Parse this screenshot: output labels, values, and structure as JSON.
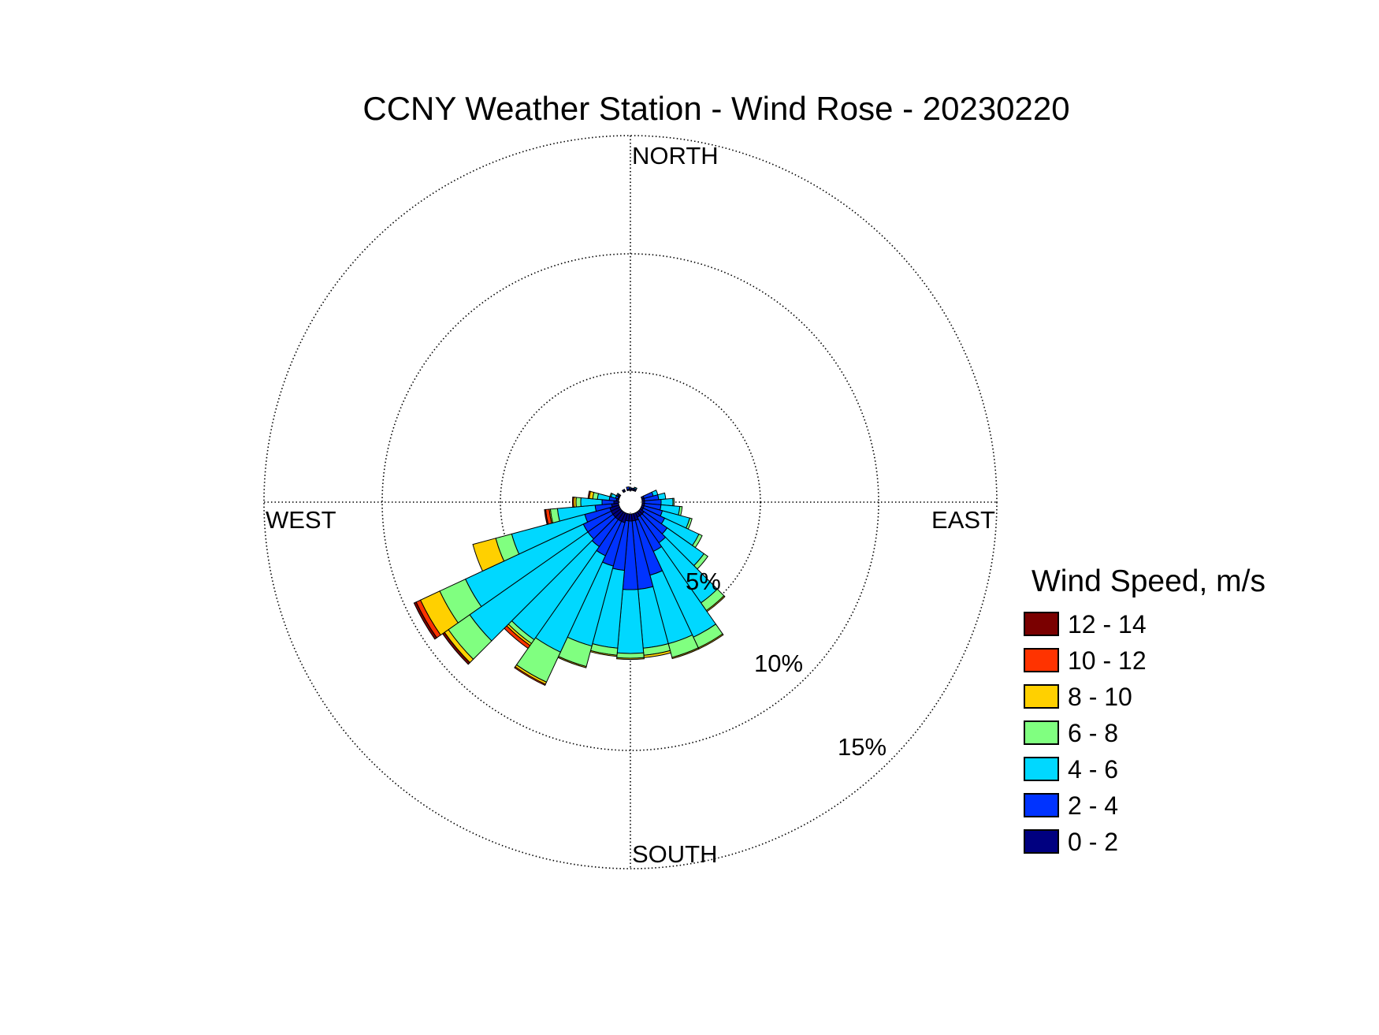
{
  "chart_data": {
    "type": "wind-rose",
    "title": "CCNY Weather Station - Wind Rose - 20230220",
    "direction_labels": {
      "north": "NORTH",
      "east": "EAST",
      "south": "SOUTH",
      "west": "WEST"
    },
    "radial_labels": [
      "5%",
      "10%",
      "15%"
    ],
    "radial_values": [
      5,
      10,
      15
    ],
    "radial_max": 15.5,
    "sector_width_deg": 10,
    "legend": {
      "title": "Wind Speed, m/s",
      "items": [
        {
          "label": "12 - 14",
          "color": "#7a0000"
        },
        {
          "label": "10 - 12",
          "color": "#ff3300"
        },
        {
          "label": "8 - 10",
          "color": "#ffd000"
        },
        {
          "label": "6 - 8",
          "color": "#80ff80"
        },
        {
          "label": "4 - 6",
          "color": "#00d8ff"
        },
        {
          "label": "2 - 4",
          "color": "#0033ff"
        },
        {
          "label": "0 - 2",
          "color": "#000080"
        }
      ]
    },
    "bin_order": [
      "0 - 2",
      "2 - 4",
      "4 - 6",
      "6 - 8",
      "8 - 10",
      "10 - 12",
      "12 - 14"
    ],
    "sectors": [
      {
        "direction": 0,
        "values": [
          0.05,
          0.05,
          0,
          0,
          0,
          0,
          0
        ]
      },
      {
        "direction": 10,
        "values": [
          0.05,
          0.05,
          0,
          0,
          0,
          0,
          0
        ]
      },
      {
        "direction": 20,
        "values": [
          0.05,
          0.05,
          0.05,
          0,
          0,
          0,
          0
        ]
      },
      {
        "direction": 70,
        "values": [
          0.1,
          0.4,
          0.2,
          0,
          0,
          0,
          0
        ]
      },
      {
        "direction": 80,
        "values": [
          0.1,
          0.6,
          0.3,
          0,
          0,
          0,
          0
        ]
      },
      {
        "direction": 90,
        "values": [
          0.1,
          0.7,
          0.5,
          0.05,
          0,
          0,
          0
        ]
      },
      {
        "direction": 100,
        "values": [
          0.1,
          0.7,
          0.8,
          0.1,
          0,
          0,
          0
        ]
      },
      {
        "direction": 110,
        "values": [
          0.1,
          0.8,
          1.2,
          0.1,
          0,
          0,
          0
        ]
      },
      {
        "direction": 120,
        "values": [
          0.1,
          1.0,
          1.6,
          0.15,
          0,
          0,
          0
        ]
      },
      {
        "direction": 130,
        "values": [
          0.2,
          1.2,
          1.9,
          0.2,
          0,
          0,
          0
        ]
      },
      {
        "direction": 140,
        "values": [
          0.2,
          1.4,
          3.1,
          0.4,
          0.05,
          0,
          0
        ]
      },
      {
        "direction": 150,
        "values": [
          0.2,
          1.6,
          4.0,
          0.5,
          0.05,
          0,
          0
        ]
      },
      {
        "direction": 160,
        "values": [
          0.3,
          2.4,
          3.0,
          0.6,
          0.05,
          0,
          0
        ]
      },
      {
        "direction": 170,
        "values": [
          0.3,
          2.9,
          2.5,
          0.3,
          0.1,
          0,
          0
        ]
      },
      {
        "direction": 180,
        "values": [
          0.3,
          2.9,
          2.7,
          0.2,
          0.05,
          0,
          0
        ]
      },
      {
        "direction": 190,
        "values": [
          0.3,
          2.1,
          3.3,
          0.3,
          0.05,
          0,
          0
        ]
      },
      {
        "direction": 200,
        "values": [
          0.4,
          1.9,
          3.5,
          0.9,
          0.05,
          0,
          0
        ]
      },
      {
        "direction": 210,
        "values": [
          0.4,
          1.6,
          4.5,
          1.4,
          0.1,
          0.05,
          0
        ]
      },
      {
        "direction": 220,
        "values": [
          0.4,
          1.4,
          4.8,
          0.2,
          0.1,
          0.15,
          0
        ]
      },
      {
        "direction": 230,
        "values": [
          0.4,
          1.3,
          6.1,
          1.1,
          0.2,
          0,
          0.1
        ]
      },
      {
        "direction": 240,
        "values": [
          0.4,
          1.3,
          5.5,
          1.2,
          0.9,
          0.2,
          0.1
        ]
      },
      {
        "direction": 250,
        "values": [
          0.4,
          1.1,
          3.2,
          0.7,
          1.0,
          0,
          0
        ]
      },
      {
        "direction": 260,
        "values": [
          0.3,
          0.7,
          1.6,
          0.3,
          0.05,
          0.15,
          0.05
        ]
      },
      {
        "direction": 270,
        "values": [
          0.2,
          0.5,
          0.9,
          0.2,
          0.1,
          0.05,
          0
        ]
      },
      {
        "direction": 280,
        "values": [
          0.1,
          0.3,
          0.5,
          0.2,
          0.15,
          0.05,
          0
        ]
      },
      {
        "direction": 290,
        "values": [
          0.05,
          0.1,
          0.2,
          0.05,
          0,
          0,
          0
        ]
      },
      {
        "direction": 300,
        "values": [
          0.05,
          0.05,
          0.05,
          0,
          0,
          0,
          0
        ]
      },
      {
        "direction": 330,
        "values": [
          0.05,
          0.05,
          0,
          0,
          0,
          0,
          0
        ]
      },
      {
        "direction": 350,
        "values": [
          0.05,
          0.1,
          0,
          0,
          0,
          0,
          0
        ]
      }
    ]
  }
}
